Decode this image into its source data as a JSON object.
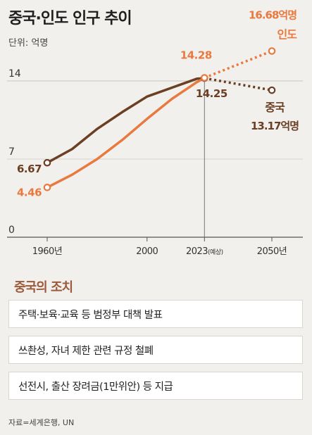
{
  "title": "중국·인도 인구 추이",
  "unit": "단위: 억명",
  "colors": {
    "china": "#6b3f24",
    "india": "#e8793f",
    "measure_title": "#9b5a3c"
  },
  "chart_data": {
    "type": "line",
    "title": "중국·인도 인구 추이",
    "ylabel": "단위: 억명",
    "ylim": [
      0,
      14
    ],
    "yticks": [
      0,
      7,
      14
    ],
    "x_ticks": [
      {
        "label": "1960년",
        "x": 1960
      },
      {
        "label": "2000",
        "x": 2000
      },
      {
        "label": "2023",
        "sub": "(예상)",
        "x": 2023
      },
      {
        "label": "2050년",
        "x": 2050
      }
    ],
    "projection_start": 2023,
    "series": [
      {
        "key": "china",
        "points": [
          [
            1960,
            6.67
          ],
          [
            1970,
            7.9
          ],
          [
            1980,
            9.7
          ],
          [
            1990,
            11.2
          ],
          [
            2000,
            12.6
          ],
          [
            2010,
            13.4
          ],
          [
            2020,
            14.2
          ],
          [
            2023,
            14.25
          ],
          [
            2050,
            13.17
          ]
        ],
        "labels": [
          {
            "x": 1960,
            "y": 6.67,
            "text": "6.67"
          },
          {
            "x": 2023,
            "y": 14.25,
            "text": "14.25"
          },
          {
            "x": 2050,
            "y": 13.17,
            "name": "중국",
            "text": "13.17억명"
          }
        ]
      },
      {
        "key": "india",
        "points": [
          [
            1960,
            4.46
          ],
          [
            1970,
            5.6
          ],
          [
            1980,
            7.0
          ],
          [
            1990,
            8.7
          ],
          [
            2000,
            10.6
          ],
          [
            2010,
            12.4
          ],
          [
            2020,
            13.9
          ],
          [
            2023,
            14.28
          ],
          [
            2050,
            16.68
          ]
        ],
        "labels": [
          {
            "x": 1960,
            "y": 4.46,
            "text": "4.46"
          },
          {
            "x": 2023,
            "y": 14.28,
            "text": "14.28"
          },
          {
            "x": 2050,
            "y": 16.68,
            "text": "16.68억명",
            "name": "인도"
          }
        ]
      }
    ]
  },
  "measures": {
    "title": "중국의 조치",
    "items": [
      "주택·보육·교육 등 범정부 대책 발표",
      "쓰촨성, 자녀 제한 관련 규정 철폐",
      "선전시, 출산 장려금(1만위안) 등 지급"
    ]
  },
  "source": "자료=세계은행, UN"
}
